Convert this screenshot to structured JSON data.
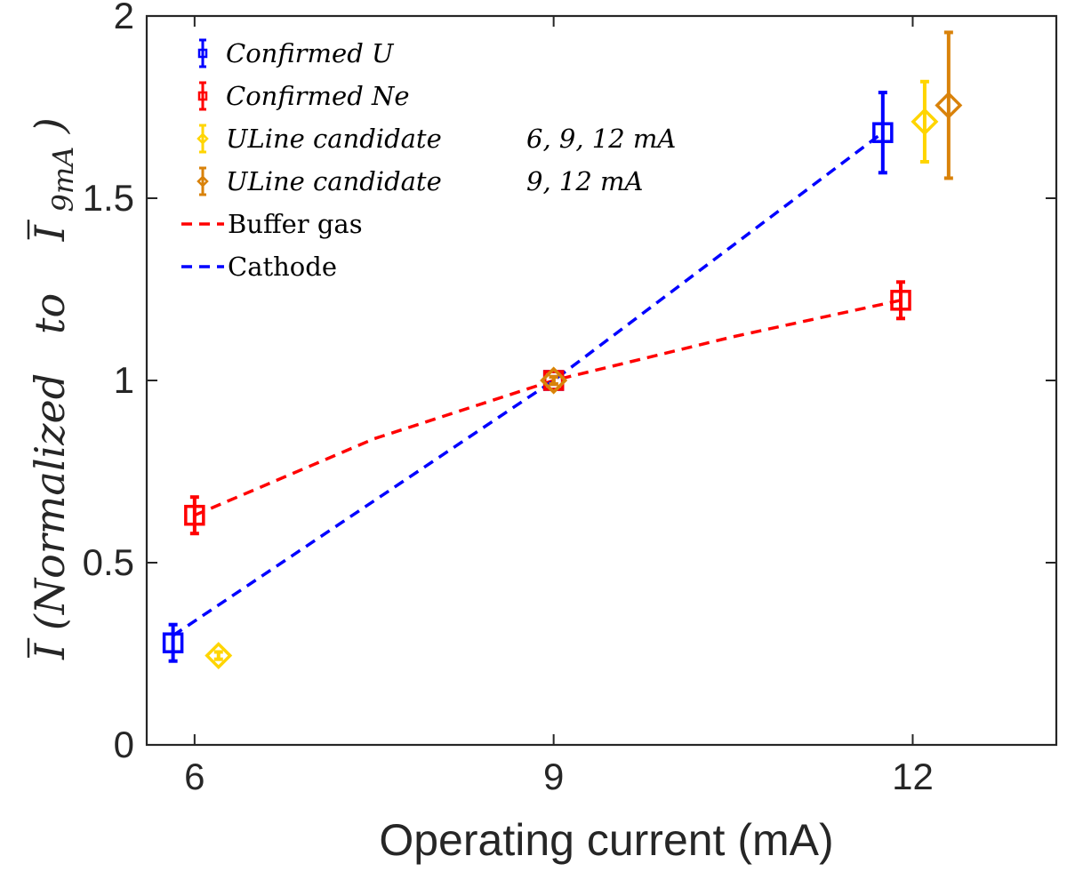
{
  "chart_data": {
    "type": "scatter",
    "xlabel": "Operating current (mA)",
    "ylabel": {
      "main": "I",
      "middle": "(Normalized   to   ",
      "bar": "I",
      "subscript": "9mA",
      "close": ")"
    },
    "xlim": [
      5.6,
      13.2
    ],
    "ylim": [
      0,
      2
    ],
    "xticks": [
      {
        "value": 6,
        "label": "6"
      },
      {
        "value": 9,
        "label": "9"
      },
      {
        "value": 12,
        "label": "12"
      }
    ],
    "yticks": [
      {
        "value": 0,
        "label": "0"
      },
      {
        "value": 0.5,
        "label": "0.5"
      },
      {
        "value": 1,
        "label": "1"
      },
      {
        "value": 1.5,
        "label": "1.5"
      },
      {
        "value": 2,
        "label": "2"
      }
    ],
    "grid": false,
    "legend_position": "top-left",
    "series": [
      {
        "name": "Confirmed   U",
        "kind": "points",
        "marker": "square",
        "color": "#0000ff",
        "points": [
          {
            "x": 5.82,
            "y": 0.28,
            "err": 0.05
          },
          {
            "x": 9.0,
            "y": 1.0,
            "err": 0.01
          },
          {
            "x": 11.75,
            "y": 1.68,
            "err": 0.11
          }
        ]
      },
      {
        "name": "Confirmed   Ne",
        "kind": "points",
        "marker": "square",
        "color": "#ff0000",
        "points": [
          {
            "x": 6.0,
            "y": 0.63,
            "err": 0.05
          },
          {
            "x": 9.0,
            "y": 1.0,
            "err": 0.01
          },
          {
            "x": 11.9,
            "y": 1.22,
            "err": 0.05
          }
        ]
      },
      {
        "name": "ULine   candidate",
        "name_suffix": "6, 9, 12 mA",
        "kind": "points",
        "marker": "diamond",
        "color": "#ffd500",
        "points": [
          {
            "x": 6.2,
            "y": 0.245,
            "err": 0.01
          },
          {
            "x": 9.0,
            "y": 1.0,
            "err": 0.01
          },
          {
            "x": 12.1,
            "y": 1.71,
            "err": 0.11
          }
        ]
      },
      {
        "name": "ULine   candidate",
        "name_suffix": "9, 12 mA",
        "kind": "points",
        "marker": "diamond",
        "color": "#d9820a",
        "points": [
          {
            "x": 9.0,
            "y": 1.0,
            "err": 0.01
          },
          {
            "x": 12.3,
            "y": 1.755,
            "err": 0.2
          }
        ]
      },
      {
        "name": "Buffer gas",
        "kind": "line",
        "dash": true,
        "color": "#ff0000",
        "points": [
          {
            "x": 6.0,
            "y": 0.63
          },
          {
            "x": 7.5,
            "y": 0.84
          },
          {
            "x": 9.0,
            "y": 1.0
          },
          {
            "x": 10.5,
            "y": 1.12
          },
          {
            "x": 11.9,
            "y": 1.22
          }
        ]
      },
      {
        "name": "Cathode",
        "kind": "line",
        "dash": true,
        "color": "#0000ff",
        "points": [
          {
            "x": 5.82,
            "y": 0.3
          },
          {
            "x": 9.0,
            "y": 1.0
          },
          {
            "x": 11.75,
            "y": 1.68
          }
        ]
      }
    ]
  }
}
